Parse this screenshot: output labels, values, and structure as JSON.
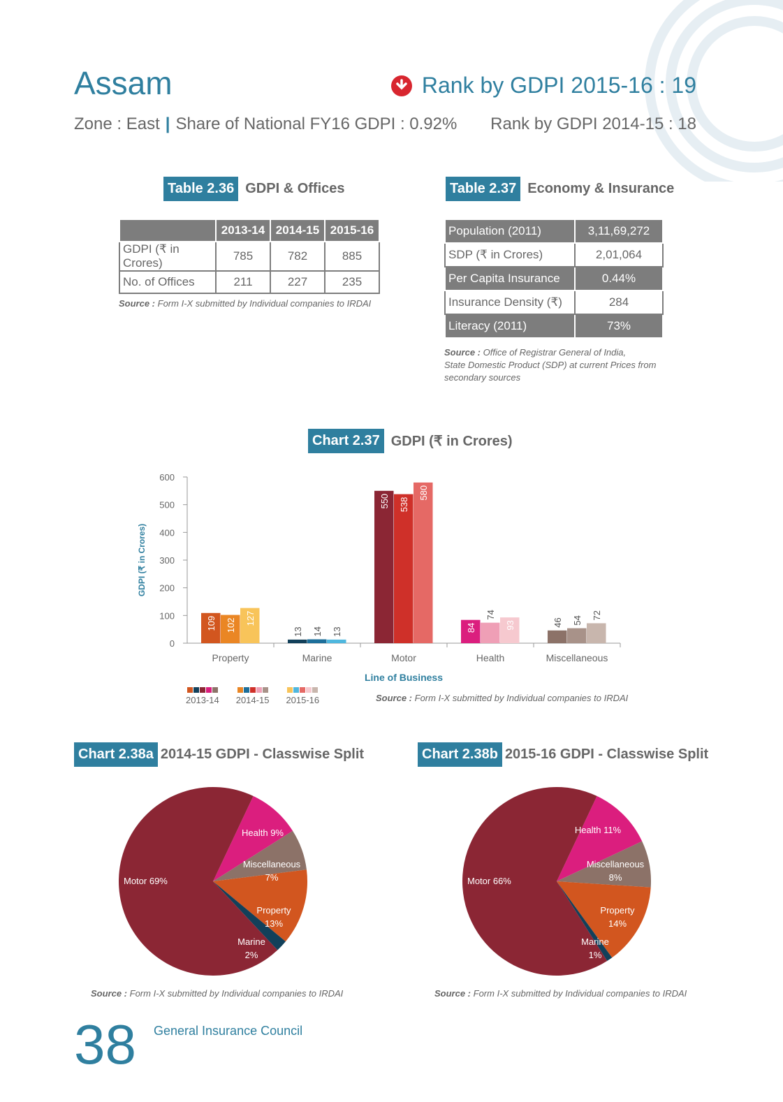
{
  "header": {
    "state": "Assam",
    "rank_current": "Rank by GDPI 2015-16 : 19",
    "zone": "Zone : East",
    "share": "Share of National FY16 GDPI : 0.92%",
    "rank_prev": "Rank by GDPI 2014-15 : 18",
    "rank_icon": "down-arrow-circle-icon",
    "accent": "#2f7f9f"
  },
  "table36": {
    "label": "Table 2.36",
    "title": "GDPI & Offices",
    "columns": [
      "",
      "2013-14",
      "2014-15",
      "2015-16"
    ],
    "rows": [
      {
        "label": "GDPI (₹ in Crores)",
        "values": [
          "785",
          "782",
          "885"
        ]
      },
      {
        "label": "No. of Offices",
        "values": [
          "211",
          "227",
          "235"
        ]
      }
    ],
    "source_prefix": "Source :",
    "source_text": "Form I-X submitted by Individual companies to IRDAI"
  },
  "table37": {
    "label": "Table 2.37",
    "title": "Economy & Insurance",
    "rows": [
      {
        "label": "Population (2011)",
        "value": "3,11,69,272"
      },
      {
        "label": "SDP (₹ in Crores)",
        "value": "2,01,064"
      },
      {
        "label": "Per Capita Insurance",
        "value": "0.44%"
      },
      {
        "label": "Insurance Density (₹)",
        "value": "284"
      },
      {
        "label": "Literacy (2011)",
        "value": "73%"
      }
    ],
    "source_prefix": "Source :",
    "source_lines": [
      "Office of Registrar General of India,",
      "State Domestic Product (SDP) at current Prices from",
      "secondary sources"
    ]
  },
  "chart_data": [
    {
      "type": "bar",
      "label": "Chart 2.37",
      "title": "GDPI (₹ in Crores)",
      "xlabel": "Line of Business",
      "ylabel": "GDPI (₹ in Crores)",
      "ylim": [
        0,
        600
      ],
      "yticks": [
        0,
        100,
        200,
        300,
        400,
        500,
        600
      ],
      "categories": [
        "Property",
        "Marine",
        "Motor",
        "Health",
        "Miscellaneous"
      ],
      "series": [
        {
          "name": "2013-14",
          "values": [
            109,
            13,
            550,
            84,
            46
          ]
        },
        {
          "name": "2014-15",
          "values": [
            102,
            14,
            538,
            74,
            54
          ]
        },
        {
          "name": "2015-16",
          "values": [
            127,
            13,
            580,
            93,
            72
          ]
        }
      ],
      "colors": [
        [
          "#d2561f",
          "#12405a",
          "#8b2634",
          "#db1e7e",
          "#8c7268"
        ],
        [
          "#ea8624",
          "#1d6f9a",
          "#cf3029",
          "#ef9fb6",
          "#a89289"
        ],
        [
          "#f8c45a",
          "#4fb7de",
          "#e56965",
          "#f6c9cf",
          "#c8b6ad"
        ]
      ],
      "legend": "bottom-left",
      "grid": false,
      "source_prefix": "Source :",
      "source_text": "Form I-X submitted by Individual companies to IRDAI"
    },
    {
      "type": "pie",
      "label": "Chart 2.38a",
      "title": "2014-15 GDPI - Classwise Split",
      "slices": [
        {
          "name": "Health",
          "value": 9,
          "text": "Health 9%",
          "color": "#db1e7e"
        },
        {
          "name": "Miscellaneous",
          "value": 7,
          "text1": "Miscellaneous",
          "text2": "7%",
          "color": "#8c7268"
        },
        {
          "name": "Property",
          "value": 13,
          "text1": "Property",
          "text2": "13%",
          "color": "#d2561f"
        },
        {
          "name": "Marine",
          "value": 2,
          "text1": "Marine",
          "text2": "2%",
          "color": "#12405a"
        },
        {
          "name": "Motor",
          "value": 69,
          "text": "Motor 69%",
          "color": "#8b2634"
        }
      ],
      "source_prefix": "Source :",
      "source_text": "Form I-X submitted by Individual companies to IRDAI"
    },
    {
      "type": "pie",
      "label": "Chart 2.38b",
      "title": "2015-16 GDPI - Classwise Split",
      "slices": [
        {
          "name": "Health",
          "value": 11,
          "text": "Health 11%",
          "color": "#db1e7e"
        },
        {
          "name": "Miscellaneous",
          "value": 8,
          "text1": "Miscellaneous",
          "text2": "8%",
          "color": "#8c7268"
        },
        {
          "name": "Property",
          "value": 14,
          "text1": "Property",
          "text2": "14%",
          "color": "#d2561f"
        },
        {
          "name": "Marine",
          "value": 1,
          "text1": "Marine",
          "text2": "1%",
          "color": "#12405a"
        },
        {
          "name": "Motor",
          "value": 66,
          "text": "Motor 66%",
          "color": "#8b2634"
        }
      ],
      "source_prefix": "Source :",
      "source_text": "Form I-X submitted by Individual companies to IRDAI"
    }
  ],
  "footer": {
    "page_number": "38",
    "publisher": "General Insurance Council"
  }
}
